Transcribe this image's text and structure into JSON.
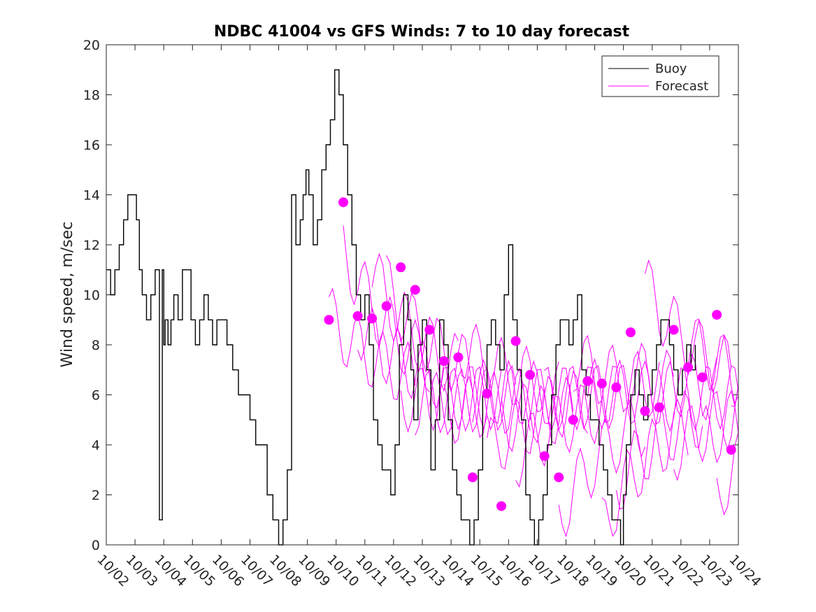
{
  "chart_data": {
    "type": "line",
    "title": "NDBC 41004 vs GFS Winds: 7 to 10 day forecast",
    "xlabel": "",
    "ylabel": "Wind speed, m/sec",
    "ylim": [
      0,
      20
    ],
    "xlim": [
      0,
      22
    ],
    "grid": false,
    "legend_position": "top-right",
    "legend": [
      "Buoy",
      "Forecast"
    ],
    "x_tick_values": [
      0,
      1,
      2,
      3,
      4,
      5,
      6,
      7,
      8,
      9,
      10,
      11,
      12,
      13,
      14,
      15,
      16,
      17,
      18,
      19,
      20,
      21,
      22
    ],
    "x_tick_labels": [
      "10/02",
      "10/03",
      "10/04",
      "10/05",
      "10/06",
      "10/07",
      "10/08",
      "10/09",
      "10/10",
      "10/11",
      "10/12",
      "10/13",
      "10/14",
      "10/15",
      "10/16",
      "10/17",
      "10/18",
      "10/19",
      "10/20",
      "10/21",
      "10/22",
      "10/23",
      "10/24"
    ],
    "y_tick_values": [
      0,
      2,
      4,
      6,
      8,
      10,
      12,
      14,
      16,
      18,
      20
    ],
    "y_tick_labels": [
      "0",
      "2",
      "4",
      "6",
      "8",
      "10",
      "12",
      "14",
      "16",
      "18",
      "20"
    ],
    "colors": {
      "buoy": "#000000",
      "forecast": "#ff00ff"
    },
    "series": [
      {
        "name": "Buoy",
        "x": [
          0,
          0.15,
          0.3,
          0.45,
          0.6,
          0.75,
          0.9,
          1.05,
          1.15,
          1.25,
          1.4,
          1.55,
          1.7,
          1.85,
          1.95,
          2.0,
          2.05,
          2.15,
          2.25,
          2.35,
          2.5,
          2.65,
          2.8,
          2.95,
          3.1,
          3.25,
          3.4,
          3.55,
          3.7,
          3.85,
          4.0,
          4.2,
          4.4,
          4.6,
          4.8,
          5.0,
          5.2,
          5.4,
          5.6,
          5.8,
          6.0,
          6.15,
          6.3,
          6.45,
          6.6,
          6.75,
          6.85,
          6.95,
          7.05,
          7.2,
          7.35,
          7.5,
          7.65,
          7.8,
          7.95,
          8.1,
          8.25,
          8.4,
          8.55,
          8.7,
          8.85,
          9.0,
          9.15,
          9.3,
          9.45,
          9.6,
          9.75,
          9.9,
          10.05,
          10.2,
          10.35,
          10.5,
          10.6,
          10.7,
          10.85,
          11.0,
          11.15,
          11.3,
          11.45,
          11.6,
          11.75,
          11.9,
          12.05,
          12.2,
          12.35,
          12.5,
          12.65,
          12.8,
          12.95,
          13.1,
          13.25,
          13.4,
          13.55,
          13.7,
          13.85,
          14.0,
          14.15,
          14.3,
          14.45,
          14.6,
          14.75,
          14.9,
          15.05,
          15.2,
          15.35,
          15.5,
          15.65,
          15.8,
          15.95,
          16.1,
          16.25,
          16.4,
          16.55,
          16.7,
          16.85,
          17.0,
          17.15,
          17.3,
          17.45,
          17.6,
          17.75,
          17.9,
          18.0,
          18.1,
          18.25,
          18.4,
          18.55,
          18.7,
          18.85,
          19.0,
          19.15,
          19.3,
          19.45,
          19.6,
          19.75,
          19.9,
          20.05,
          20.2,
          20.35,
          20.5
        ],
        "y": [
          11,
          10,
          11,
          12,
          13,
          14,
          14,
          13,
          11,
          10,
          9,
          10,
          11,
          1,
          11,
          8,
          9,
          8,
          9,
          10,
          9,
          11,
          11,
          9,
          8,
          9,
          10,
          9,
          8,
          9,
          9,
          8,
          7,
          6,
          6,
          5,
          4,
          4,
          2,
          1,
          0,
          1,
          3,
          14,
          12,
          13,
          14,
          15,
          14,
          12,
          13,
          15,
          16,
          17,
          19,
          18,
          16,
          14,
          12,
          10,
          9,
          10,
          8,
          5,
          4,
          3,
          3,
          2,
          4,
          8,
          10,
          9,
          7,
          5,
          8,
          9,
          7,
          3,
          5,
          9,
          8,
          5,
          3,
          2,
          1,
          1,
          0,
          1,
          3,
          6,
          8,
          9,
          8,
          7,
          10,
          12,
          9,
          7,
          5,
          2,
          1,
          0,
          1,
          2,
          4,
          6,
          8,
          9,
          9,
          8,
          9,
          10,
          7,
          6,
          5,
          5,
          4,
          3,
          2,
          1,
          1,
          0,
          2,
          4,
          6,
          7,
          6,
          5,
          6,
          7,
          8,
          9,
          9,
          8,
          7,
          6,
          7,
          8,
          7,
          8
        ]
      },
      {
        "name": "Forecast",
        "x": [
          7.75,
          8.25,
          8.75,
          9.25,
          9.75,
          10.25,
          10.75,
          11.25,
          11.75,
          12.25,
          12.75,
          13.25,
          13.75,
          14.25,
          14.75,
          15.25,
          15.75,
          16.25,
          16.75,
          17.25,
          17.75,
          18.25,
          18.75,
          19.25,
          19.75,
          20.25,
          20.75,
          21.25,
          21.75
        ],
        "y": [
          9,
          13.5,
          9,
          10,
          11,
          7,
          5,
          4.5,
          6,
          9,
          5,
          3,
          6,
          3.5,
          4.5,
          6,
          2,
          7,
          5,
          1,
          3,
          6,
          10,
          7,
          4,
          7,
          4,
          3,
          6.5
        ]
      }
    ],
    "forecast_markers": {
      "x": [
        7.75,
        8.25,
        8.75,
        9.25,
        9.75,
        10.25,
        10.75,
        11.25,
        11.75,
        12.25,
        12.75,
        13.25,
        13.75,
        14.25,
        14.75,
        15.25,
        15.75,
        16.25,
        16.75,
        17.25,
        17.75,
        18.25,
        18.75,
        19.25,
        19.75,
        20.25,
        20.75,
        21.25,
        21.75
      ],
      "y": [
        9.0,
        13.7,
        9.15,
        9.05,
        9.55,
        11.1,
        10.2,
        8.6,
        7.35,
        7.5,
        2.7,
        6.05,
        1.55,
        8.15,
        6.8,
        3.55,
        2.7,
        5.0,
        6.55,
        6.45,
        6.3,
        8.5,
        5.35,
        5.5,
        8.6,
        7.1,
        6.7,
        9.2,
        3.8
      ]
    }
  }
}
